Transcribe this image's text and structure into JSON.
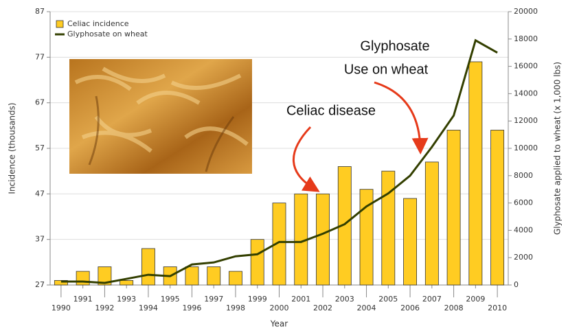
{
  "chart_data": {
    "type": "bar_line",
    "x_label": "Year",
    "y_label": "Incidence (thousands)",
    "y2_label": "Glyphosate applied to wheat (x 1,000 lbs)",
    "categories": [
      "1990",
      "1991",
      "1992",
      "1993",
      "1994",
      "1995",
      "1996",
      "1997",
      "1998",
      "1999",
      "2000",
      "2001",
      "2002",
      "2003",
      "2004",
      "2005",
      "2006",
      "2007",
      "2008",
      "2009",
      "2010"
    ],
    "series": [
      {
        "name": "Celiac incidence",
        "type": "bar",
        "color": "#ffcc22",
        "values": [
          28,
          30,
          31,
          28,
          35,
          31,
          31,
          31,
          30,
          37,
          45,
          47,
          47,
          53,
          48,
          52,
          46,
          54,
          61,
          76,
          61
        ]
      },
      {
        "name": "Glyphosate on wheat",
        "type": "line",
        "axis": "y2",
        "color": "#333f00",
        "values": [
          250,
          250,
          150,
          450,
          750,
          650,
          1500,
          1650,
          2100,
          2250,
          3150,
          3150,
          3750,
          4450,
          5750,
          6700,
          8000,
          10100,
          12400,
          17900,
          17000
        ]
      }
    ],
    "ylim": [
      27,
      87
    ],
    "yticks": [
      27,
      37,
      47,
      57,
      67,
      77,
      87
    ],
    "y2lim": [
      0,
      20000
    ],
    "y2ticks": [
      0,
      2000,
      4000,
      6000,
      8000,
      10000,
      12000,
      14000,
      16000,
      18000,
      20000
    ],
    "grid": true,
    "legend": "top-left",
    "annotations": [
      "Glyphosate",
      "Use on wheat",
      "Celiac disease"
    ]
  }
}
